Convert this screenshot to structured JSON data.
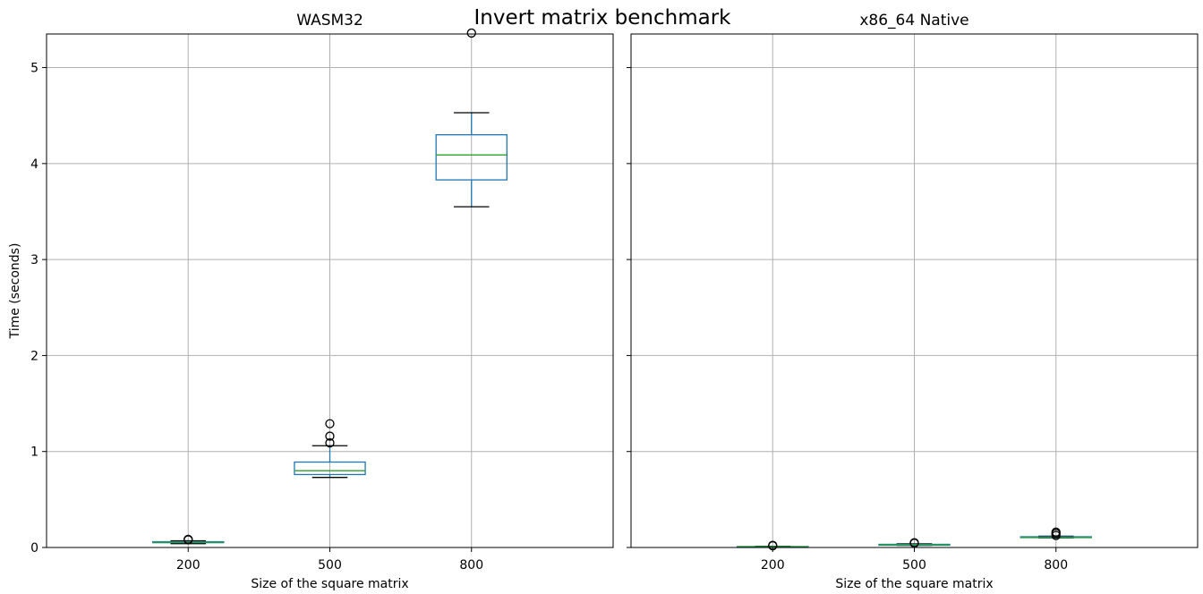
{
  "suptitle": "Invert matrix benchmark",
  "ylabel": "Time (seconds)",
  "chart_data": [
    {
      "type": "boxplot",
      "title": "WASM32",
      "xlabel": "Size of the square matrix",
      "ylabel": "Time (seconds)",
      "ylim": [
        0,
        5.35
      ],
      "yticks": [
        0,
        1,
        2,
        3,
        4,
        5
      ],
      "grid": true,
      "categories": [
        "200",
        "500",
        "800"
      ],
      "boxes": [
        {
          "category": "200",
          "whislo": 0.04,
          "q1": 0.05,
          "med": 0.055,
          "q3": 0.06,
          "whishi": 0.07,
          "fliers": [
            0.08,
            0.085
          ]
        },
        {
          "category": "500",
          "whislo": 0.73,
          "q1": 0.76,
          "med": 0.8,
          "q3": 0.89,
          "whishi": 1.06,
          "fliers": [
            1.09,
            1.16,
            1.29
          ]
        },
        {
          "category": "800",
          "whislo": 3.55,
          "q1": 3.83,
          "med": 4.09,
          "q3": 4.3,
          "whishi": 4.53,
          "fliers": [
            5.36
          ]
        }
      ]
    },
    {
      "type": "boxplot",
      "title": "x86_64 Native",
      "xlabel": "Size of the square matrix",
      "ylim": [
        0,
        5.35
      ],
      "yticks": [
        0,
        1,
        2,
        3,
        4,
        5
      ],
      "grid": true,
      "categories": [
        "200",
        "500",
        "800"
      ],
      "boxes": [
        {
          "category": "200",
          "whislo": 0.003,
          "q1": 0.006,
          "med": 0.008,
          "q3": 0.01,
          "whishi": 0.013,
          "fliers": [
            0.018,
            0.022
          ]
        },
        {
          "category": "500",
          "whislo": 0.022,
          "q1": 0.026,
          "med": 0.029,
          "q3": 0.033,
          "whishi": 0.038,
          "fliers": [
            0.045,
            0.05
          ]
        },
        {
          "category": "800",
          "whislo": 0.1,
          "q1": 0.104,
          "med": 0.107,
          "q3": 0.112,
          "whishi": 0.118,
          "fliers": [
            0.125,
            0.145,
            0.16
          ]
        }
      ]
    }
  ],
  "colors": {
    "box": "#1f77b4",
    "median": "#2ca02c",
    "whisker": "#000000",
    "grid": "#b0b0b0",
    "axes": "#000000"
  }
}
